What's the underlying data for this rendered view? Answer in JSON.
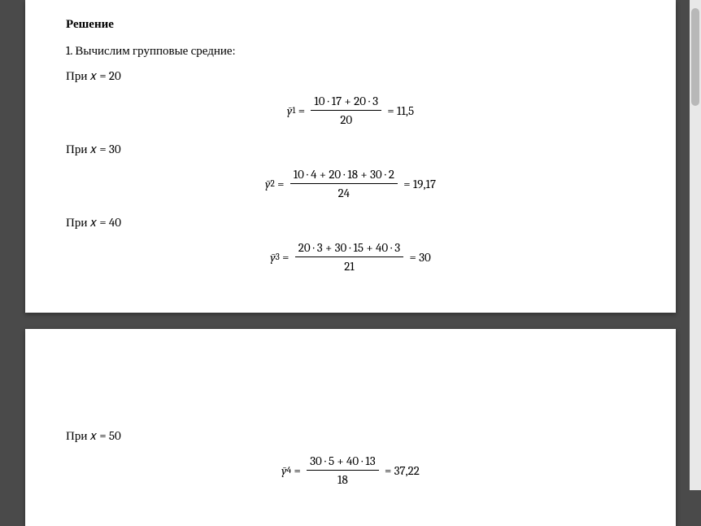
{
  "heading": "Решение",
  "intro": "1. Вычислим групповые средние:",
  "cases": [
    {
      "when_label": "При 𝑥 = 20",
      "ybar_label": "ȳ",
      "ysub": "1",
      "numerator": "10 · 17 + 20 · 3",
      "denominator": "20",
      "result": "11,5"
    },
    {
      "when_label": "При 𝑥 = 30",
      "ybar_label": "ȳ",
      "ysub": "2",
      "numerator": "10 · 4 + 20 · 18 + 30 · 2",
      "denominator": "24",
      "result": "19,17"
    },
    {
      "when_label": "При 𝑥 = 40",
      "ybar_label": "ȳ",
      "ysub": "3",
      "numerator": "20 · 3 + 30 · 15 + 40 · 3",
      "denominator": "21",
      "result": "30"
    },
    {
      "when_label": "При 𝑥 = 50",
      "ybar_label": "ȳ",
      "ysub": "4",
      "numerator": "30 · 5 + 40 · 13",
      "denominator": "18",
      "result": "37,22"
    }
  ],
  "colors": {
    "page_bg": "#ffffff",
    "outer_bg": "#4a4a4a",
    "text": "#000000"
  },
  "typography": {
    "body_fontsize": 15,
    "heading_weight": "bold"
  }
}
